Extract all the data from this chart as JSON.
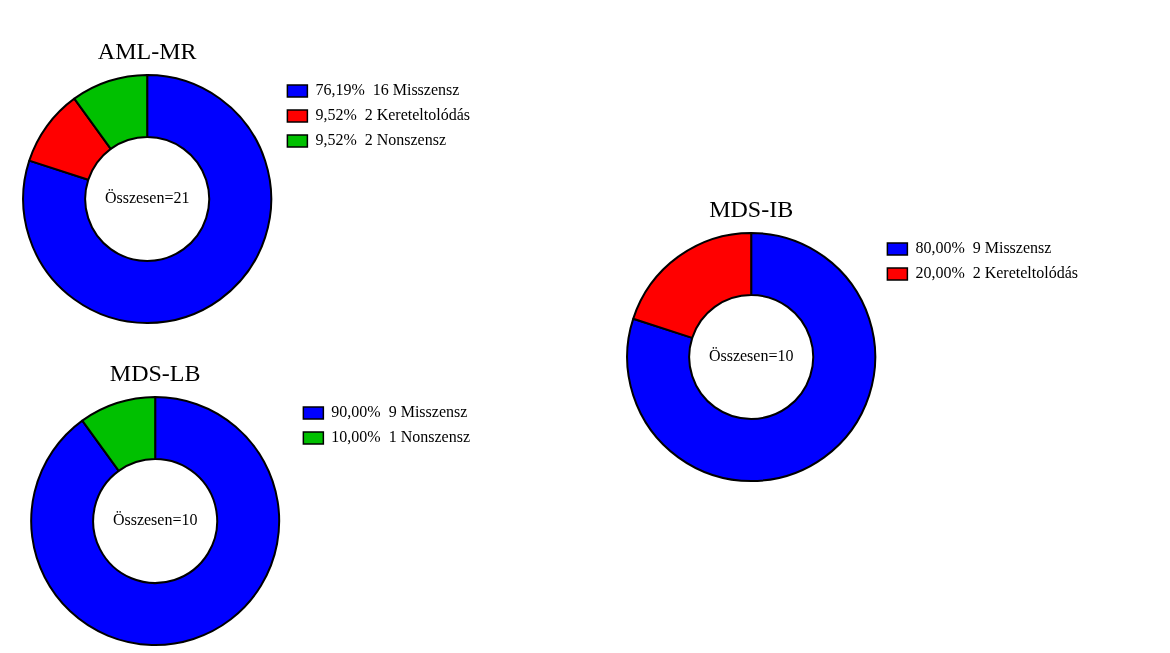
{
  "chart_data": [
    {
      "type": "donut",
      "title": "AML-MR",
      "categories": [
        "16 Misszensz",
        "2 Kereteltolódás",
        "2 Nonszensz"
      ],
      "values": [
        76.19,
        9.52,
        9.52
      ],
      "value_labels": [
        "76,19%",
        "9,52%",
        "9,52%"
      ],
      "colors": [
        "#0000ff",
        "#ff0000",
        "#00c000"
      ],
      "annotations": [
        "Összesen=21"
      ],
      "legend": "right"
    },
    {
      "type": "donut",
      "title": "MDS-LB",
      "categories": [
        "9 Misszensz",
        "1 Nonszensz"
      ],
      "values": [
        90,
        10
      ],
      "value_labels": [
        "90,00%",
        "10,00%"
      ],
      "colors": [
        "#0000ff",
        "#00c000"
      ],
      "annotations": [
        "Összesen=10"
      ],
      "legend": "right"
    },
    {
      "type": "donut",
      "title": "MDS-IB",
      "categories": [
        "9 Misszensz",
        "2 Kereteltolódás"
      ],
      "values": [
        80,
        20
      ],
      "value_labels": [
        "80,00%",
        "20,00%"
      ],
      "colors": [
        "#0000ff",
        "#ff0000"
      ],
      "annotations": [
        "Összesen=10"
      ],
      "legend": "right"
    }
  ]
}
